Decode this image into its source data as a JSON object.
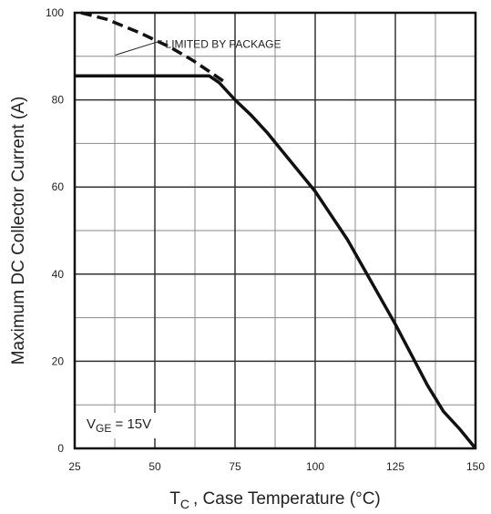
{
  "chart_data": {
    "type": "line",
    "title": "",
    "xlabel": {
      "main": "T",
      "sub": "C",
      "rest": ", Case Temperature (°C)"
    },
    "ylabel": "Maximum DC Collector Current (A)",
    "xlim": [
      25,
      150
    ],
    "ylim": [
      0,
      100
    ],
    "x_ticks": [
      25,
      50,
      75,
      100,
      125,
      150
    ],
    "y_ticks": [
      0,
      20,
      40,
      60,
      80,
      100
    ],
    "x_minor_step": 12.5,
    "y_minor_step": 10,
    "grid": true,
    "series": [
      {
        "style": "solid",
        "x": [
          25,
          67,
          70,
          75,
          80,
          85,
          90,
          95,
          100,
          105,
          110,
          115,
          120,
          125,
          130,
          135,
          140,
          145,
          150
        ],
        "y": [
          85.5,
          85.5,
          84,
          80,
          76.5,
          72.5,
          68,
          63.5,
          59,
          53.5,
          48,
          41.5,
          35,
          28.5,
          21.5,
          14.5,
          8.5,
          4.5,
          0
        ]
      },
      {
        "style": "dashed",
        "x": [
          27,
          35,
          45,
          55,
          62,
          67,
          72
        ],
        "y": [
          100,
          98.5,
          95.5,
          92,
          89,
          86.5,
          84
        ]
      }
    ],
    "annotations": [
      {
        "text": "LIMITED BY PACKAGE",
        "at": [
          51,
          93
        ]
      }
    ],
    "condition": {
      "main": "V",
      "sub": "GE",
      "rest": " = 15V"
    }
  }
}
